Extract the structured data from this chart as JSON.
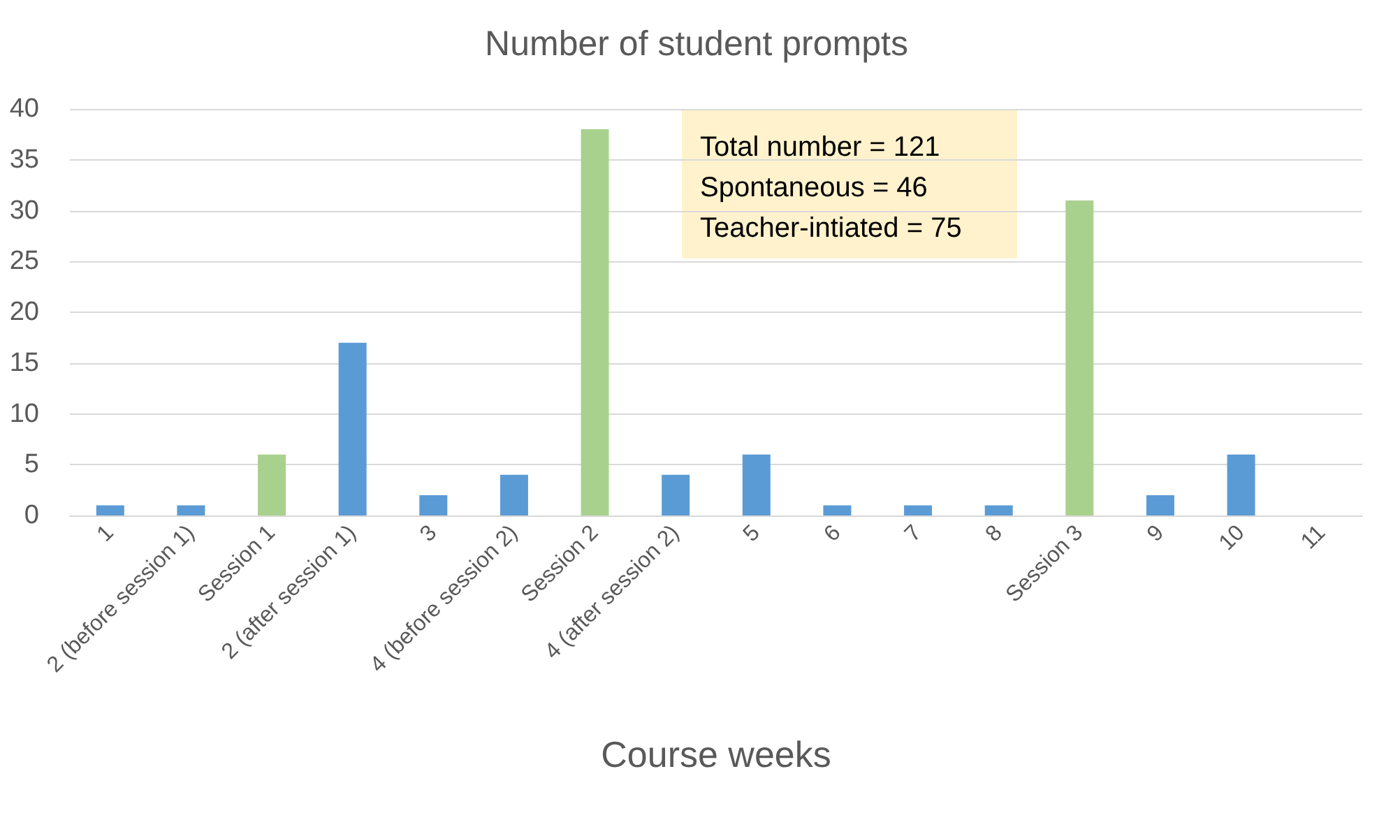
{
  "chart_data": {
    "type": "bar",
    "title": "Number of student prompts",
    "xlabel": "Course weeks",
    "categories": [
      "1",
      "2 (before session 1)",
      "Session 1",
      "2 (after session 1)",
      "3",
      "4 (before session 2)",
      "Session 2",
      "4 (after session 2)",
      "5",
      "6",
      "7",
      "8",
      "Session 3",
      "9",
      "10",
      "11"
    ],
    "values": [
      1,
      1,
      6,
      17,
      2,
      4,
      38,
      4,
      6,
      1,
      1,
      1,
      31,
      2,
      6,
      0
    ],
    "colors": [
      "#5b9bd5",
      "#5b9bd5",
      "#a9d18e",
      "#5b9bd5",
      "#5b9bd5",
      "#5b9bd5",
      "#a9d18e",
      "#5b9bd5",
      "#5b9bd5",
      "#5b9bd5",
      "#5b9bd5",
      "#5b9bd5",
      "#a9d18e",
      "#5b9bd5",
      "#5b9bd5",
      "#5b9bd5"
    ],
    "ylim": [
      0,
      40
    ],
    "yticks": [
      0,
      5,
      10,
      15,
      20,
      25,
      30,
      35,
      40
    ],
    "grid": "y",
    "annotations": [
      "Total number = 121",
      "Spontaneous = 46",
      "Teacher-intiated = 75"
    ]
  }
}
